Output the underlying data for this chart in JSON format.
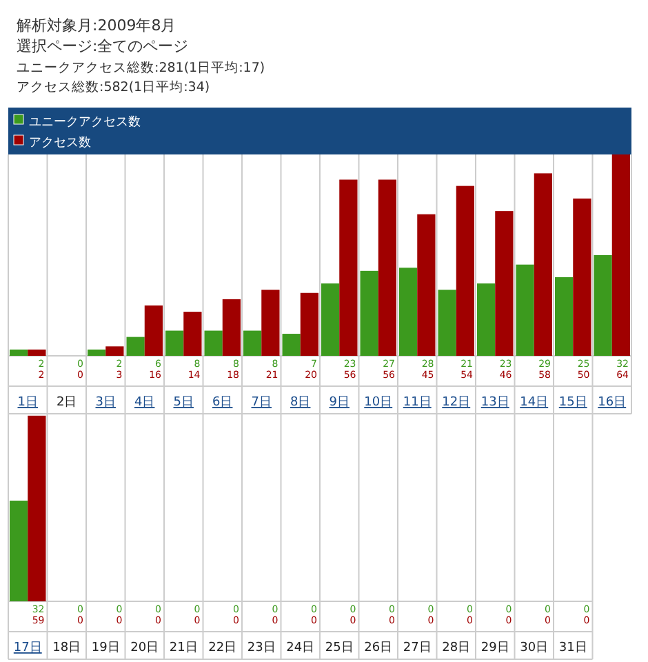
{
  "chart_data": [
    {
      "type": "bar",
      "title": "解析対象月:2009年8月",
      "subtitle": "選択ページ:全てのページ",
      "annotations": [
        "ユニークアクセス総数:281(1日平均:17)",
        "アクセス総数:582(1日平均:34)"
      ],
      "legend": "top",
      "data_labels": true,
      "categories": [
        "1日",
        "2日",
        "3日",
        "4日",
        "5日",
        "6日",
        "7日",
        "8日",
        "9日",
        "10日",
        "11日",
        "12日",
        "13日",
        "14日",
        "15日",
        "16日"
      ],
      "series": [
        {
          "name": "ユニークアクセス数",
          "color": "#3c9a1e",
          "values": [
            2,
            0,
            2,
            6,
            8,
            8,
            8,
            7,
            23,
            27,
            28,
            21,
            23,
            29,
            25,
            32
          ]
        },
        {
          "name": "アクセス数",
          "color": "#a00000",
          "values": [
            2,
            0,
            3,
            16,
            14,
            18,
            21,
            20,
            56,
            56,
            45,
            54,
            46,
            58,
            50,
            64
          ]
        }
      ]
    },
    {
      "type": "bar",
      "data_labels": true,
      "categories": [
        "17日",
        "18日",
        "19日",
        "20日",
        "21日",
        "22日",
        "23日",
        "24日",
        "25日",
        "26日",
        "27日",
        "28日",
        "29日",
        "30日",
        "31日"
      ],
      "series": [
        {
          "color": "#3c9a1e",
          "values": [
            32,
            0,
            0,
            0,
            0,
            0,
            0,
            0,
            0,
            0,
            0,
            0,
            0,
            0,
            0
          ]
        },
        {
          "color": "#a00000",
          "values": [
            59,
            0,
            0,
            0,
            0,
            0,
            0,
            0,
            0,
            0,
            0,
            0,
            0,
            0,
            0
          ]
        }
      ]
    }
  ]
}
